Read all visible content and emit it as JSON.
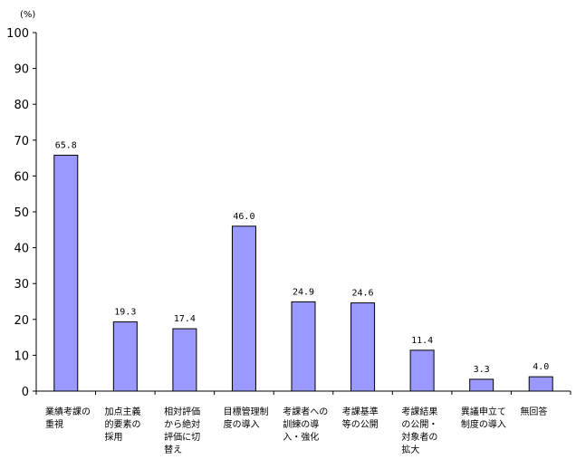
{
  "chart_data": {
    "type": "bar",
    "unit_label": "(%)",
    "categories": [
      [
        "業績考課の",
        "重視"
      ],
      [
        "加点主義",
        "的要素の",
        "採用"
      ],
      [
        "相対評価",
        "から絶対",
        "評価に切",
        "替え"
      ],
      [
        "目標管理制",
        "度の導入"
      ],
      [
        "考課者への",
        "訓練の導",
        "入・強化"
      ],
      [
        "考課基準",
        "等の公開"
      ],
      [
        "考課結果",
        "の公開・",
        "対象者の",
        "拡大"
      ],
      [
        "異議申立て",
        "制度の導入"
      ],
      [
        "無回答"
      ]
    ],
    "values": [
      65.8,
      19.3,
      17.4,
      46.0,
      24.9,
      24.6,
      11.4,
      3.3,
      4.0
    ],
    "value_labels": [
      "65.8",
      "19.3",
      "17.4",
      "46.0",
      "24.9",
      "24.6",
      "11.4",
      "3.3",
      "4.0"
    ],
    "ylim": [
      0,
      100
    ],
    "yticks": [
      "0",
      "10",
      "20",
      "30",
      "40",
      "50",
      "60",
      "70",
      "80",
      "90",
      "100"
    ],
    "colors": {
      "bar_fill": "#9999ff",
      "bar_stroke": "#000000",
      "axis": "#000000"
    },
    "grid": false,
    "legend": "none"
  }
}
